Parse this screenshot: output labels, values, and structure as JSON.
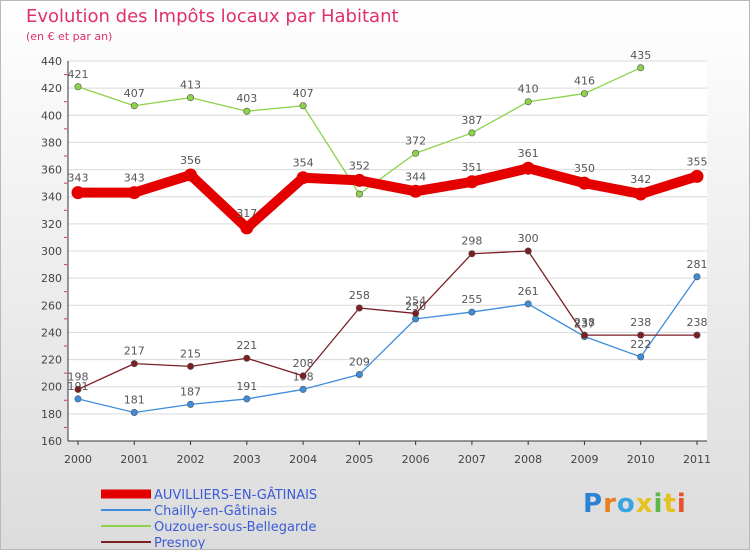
{
  "chart_data": {
    "type": "line",
    "title": "Evolution des Impôts locaux par Habitant",
    "subtitle": "(en € et par an)",
    "xlabel": "",
    "ylabel": "",
    "ylim": [
      160,
      440
    ],
    "yticks": [
      160,
      180,
      200,
      220,
      240,
      260,
      280,
      300,
      320,
      340,
      360,
      380,
      400,
      420,
      440
    ],
    "categories": [
      "2000",
      "2001",
      "2002",
      "2003",
      "2004",
      "2005",
      "2006",
      "2007",
      "2008",
      "2009",
      "2010",
      "2011"
    ],
    "grid": "horizontal",
    "legend_position": "bottom-left",
    "series": [
      {
        "name": "AUVILLIERS-EN-GÂTINAIS",
        "color": "#e50000",
        "emphasis": "thick",
        "values": [
          343,
          343,
          356,
          317,
          354,
          352,
          344,
          351,
          361,
          350,
          342,
          355
        ]
      },
      {
        "name": "Chailly-en-Gâtinais",
        "color": "#3d8ddb",
        "values": [
          191,
          181,
          187,
          191,
          198,
          209,
          250,
          255,
          261,
          237,
          222,
          281
        ]
      },
      {
        "name": "Ouzouer-sous-Bellegarde",
        "color": "#8bd348",
        "values": [
          421,
          407,
          413,
          403,
          407,
          342,
          372,
          387,
          410,
          416,
          435,
          null
        ]
      },
      {
        "name": "Presnoy",
        "color": "#7b1f24",
        "values": [
          198,
          217,
          215,
          221,
          208,
          258,
          254,
          298,
          300,
          238,
          238,
          238
        ]
      }
    ]
  },
  "legend_text_color": "#3b5bd6",
  "title_color": "#e0306a",
  "logo": {
    "letters": [
      "P",
      "r",
      "o",
      "x",
      "i",
      "t",
      "i"
    ],
    "colors": [
      "#2b83d6",
      "#ea7f1f",
      "#37a6e0",
      "#e5c21d",
      "#5fb845",
      "#e5c21d",
      "#e8522c"
    ]
  }
}
